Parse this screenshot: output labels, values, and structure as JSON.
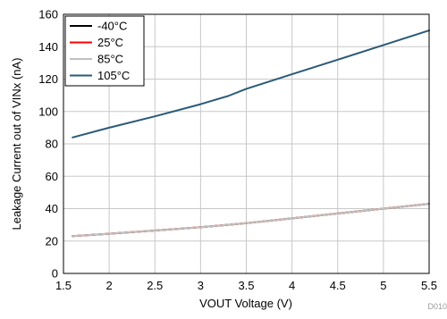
{
  "chart_data": {
    "type": "line",
    "title": "",
    "xlabel": "VOUT Voltage (V)",
    "ylabel": "Leakage Current out of VINx (nA)",
    "xlim": [
      1.5,
      5.5
    ],
    "ylim": [
      0,
      160
    ],
    "xticks": [
      1.5,
      2,
      2.5,
      3,
      3.5,
      4,
      4.5,
      5,
      5.5
    ],
    "yticks": [
      0,
      20,
      40,
      60,
      80,
      100,
      120,
      140,
      160
    ],
    "grid": true,
    "legend_position": "top-left",
    "figure_id": "D010",
    "series": [
      {
        "name": "-40°C",
        "color": "#000000",
        "x": [
          1.6,
          2.0,
          2.5,
          3.0,
          3.3,
          3.5,
          4.0,
          4.5,
          5.0,
          5.5
        ],
        "y": [
          23,
          24.5,
          26.5,
          28.5,
          30,
          31,
          34,
          37,
          40,
          43
        ]
      },
      {
        "name": "25°C",
        "color": "#ff0000",
        "x": [
          1.6,
          2.0,
          2.5,
          3.0,
          3.3,
          3.5,
          4.0,
          4.5,
          5.0,
          5.5
        ],
        "y": [
          23,
          24.5,
          26.5,
          28.5,
          30,
          31,
          34,
          37,
          40,
          43
        ]
      },
      {
        "name": "85°C",
        "color": "#c0c0c0",
        "x": [
          1.6,
          2.0,
          2.5,
          3.0,
          3.3,
          3.5,
          4.0,
          4.5,
          5.0,
          5.5
        ],
        "y": [
          23,
          24.5,
          26.5,
          28.5,
          30,
          31,
          34,
          37,
          40,
          43
        ]
      },
      {
        "name": "105°C",
        "color": "#2a5a78",
        "x": [
          1.6,
          2.0,
          2.5,
          3.0,
          3.3,
          3.5,
          4.0,
          4.5,
          5.0,
          5.5
        ],
        "y": [
          84,
          90,
          97,
          104.5,
          109.5,
          114,
          123,
          132,
          141,
          150
        ]
      }
    ]
  }
}
